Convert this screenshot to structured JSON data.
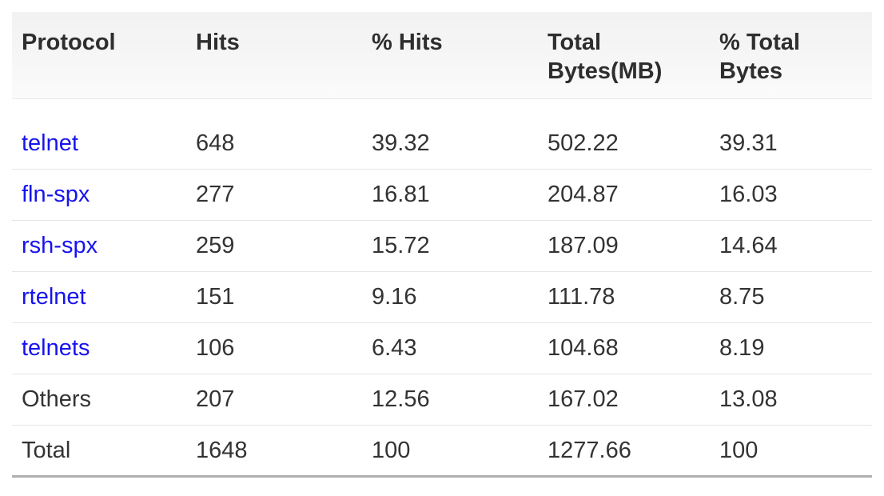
{
  "chart_data": {
    "type": "table",
    "columns": [
      "Protocol",
      "Hits",
      "% Hits",
      "Total Bytes(MB)",
      "% Total Bytes"
    ],
    "rows": [
      {
        "protocol": "telnet",
        "protocol_is_link": true,
        "hits": "648",
        "pct_hits": "39.32",
        "total_bytes_mb": "502.22",
        "pct_total_bytes": "39.31"
      },
      {
        "protocol": "fln-spx",
        "protocol_is_link": true,
        "hits": "277",
        "pct_hits": "16.81",
        "total_bytes_mb": "204.87",
        "pct_total_bytes": "16.03"
      },
      {
        "protocol": "rsh-spx",
        "protocol_is_link": true,
        "hits": "259",
        "pct_hits": "15.72",
        "total_bytes_mb": "187.09",
        "pct_total_bytes": "14.64"
      },
      {
        "protocol": "rtelnet",
        "protocol_is_link": true,
        "hits": "151",
        "pct_hits": "9.16",
        "total_bytes_mb": "111.78",
        "pct_total_bytes": "8.75"
      },
      {
        "protocol": "telnets",
        "protocol_is_link": true,
        "hits": "106",
        "pct_hits": "6.43",
        "total_bytes_mb": "104.68",
        "pct_total_bytes": "8.19"
      },
      {
        "protocol": "Others",
        "protocol_is_link": false,
        "hits": "207",
        "pct_hits": "12.56",
        "total_bytes_mb": "167.02",
        "pct_total_bytes": "13.08"
      },
      {
        "protocol": "Total",
        "protocol_is_link": false,
        "hits": "1648",
        "pct_hits": "100",
        "total_bytes_mb": "1277.66",
        "pct_total_bytes": "100"
      }
    ]
  },
  "colors": {
    "link": "#1713ee",
    "header_text": "#2e2e2e",
    "body_text": "#333333",
    "row_divider": "#e5e5e5",
    "bottom_border": "#b0b0b0",
    "header_bg_top": "#f2f2f2",
    "header_bg_bottom": "#fbfbfb"
  }
}
